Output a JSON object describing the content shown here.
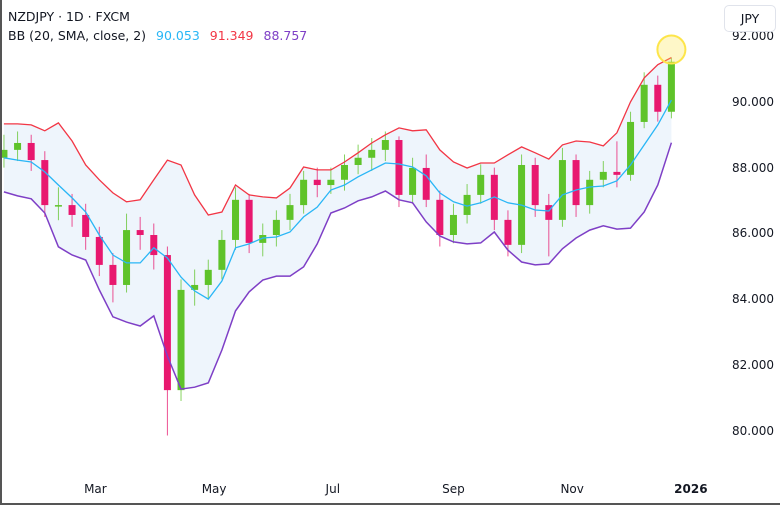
{
  "legend": {
    "symbol_line": "NZDJPY · 1D · FXCM",
    "indicator_label": "BB (20, SMA, close, 2)",
    "basis_value": "90.053",
    "upper_value": "91.349",
    "lower_value": "88.757"
  },
  "currency_button": "JPY",
  "colors": {
    "up": "#5fc32a",
    "down": "#e8186f",
    "basis": "#29b6f6",
    "upper": "#f23645",
    "lower": "#7e3fc6",
    "band_fill": "#eef5fc",
    "highlight": "#fde54a"
  },
  "chart_data": {
    "type": "candlestick",
    "title": "NZDJPY · 1D · FXCM",
    "indicator": "BB (20, SMA, close, 2)",
    "xlim": [
      "2025-01-12",
      "2026-01-17"
    ],
    "ylim": [
      78.8,
      93.1
    ],
    "grid": false,
    "y_ticks": [
      "80.000",
      "82.000",
      "84.000",
      "86.000",
      "88.000",
      "90.000",
      "92.000"
    ],
    "x_ticks": [
      {
        "date": "2025-03-01",
        "label": "Mar"
      },
      {
        "date": "2025-05-01",
        "label": "May"
      },
      {
        "date": "2025-07-01",
        "label": "Jul"
      },
      {
        "date": "2025-09-01",
        "label": "Sep"
      },
      {
        "date": "2025-11-01",
        "label": "Nov"
      },
      {
        "date": "2026-01-01",
        "label": "2026",
        "bold": true
      }
    ],
    "candles_columns": [
      "date",
      "open",
      "high",
      "low",
      "close"
    ],
    "candles": [
      [
        "2025-01-13",
        88.3,
        89.0,
        88.0,
        88.54
      ],
      [
        "2025-01-20",
        88.54,
        89.1,
        88.2,
        88.75
      ],
      [
        "2025-01-27",
        88.75,
        89.0,
        87.9,
        88.23
      ],
      [
        "2025-02-03",
        88.23,
        88.5,
        86.5,
        86.86
      ],
      [
        "2025-02-10",
        86.86,
        87.4,
        86.4,
        86.86
      ],
      [
        "2025-02-17",
        86.86,
        87.2,
        86.2,
        86.56
      ],
      [
        "2025-02-24",
        86.56,
        86.9,
        85.5,
        85.89
      ],
      [
        "2025-03-03",
        85.89,
        86.2,
        84.7,
        85.04
      ],
      [
        "2025-03-10",
        85.04,
        85.4,
        83.9,
        84.43
      ],
      [
        "2025-03-17",
        84.43,
        86.6,
        84.2,
        86.1
      ],
      [
        "2025-03-24",
        86.1,
        86.5,
        85.5,
        85.95
      ],
      [
        "2025-03-31",
        85.95,
        86.3,
        84.9,
        85.34
      ],
      [
        "2025-04-07",
        85.34,
        85.6,
        79.85,
        81.23
      ],
      [
        "2025-04-14",
        81.23,
        84.6,
        80.9,
        84.28
      ],
      [
        "2025-04-21",
        84.28,
        84.9,
        83.8,
        84.43
      ],
      [
        "2025-04-28",
        84.43,
        85.2,
        84.0,
        84.89
      ],
      [
        "2025-05-05",
        84.89,
        86.1,
        84.6,
        85.8
      ],
      [
        "2025-05-12",
        85.8,
        87.4,
        85.5,
        87.02
      ],
      [
        "2025-05-19",
        87.02,
        87.2,
        85.4,
        85.71
      ],
      [
        "2025-05-26",
        85.71,
        86.3,
        85.3,
        85.95
      ],
      [
        "2025-06-02",
        85.95,
        86.7,
        85.6,
        86.41
      ],
      [
        "2025-06-09",
        86.41,
        87.2,
        86.1,
        86.86
      ],
      [
        "2025-06-16",
        86.86,
        87.9,
        86.6,
        87.63
      ],
      [
        "2025-06-23",
        87.63,
        88.0,
        87.1,
        87.47
      ],
      [
        "2025-06-30",
        87.47,
        88.0,
        87.2,
        87.63
      ],
      [
        "2025-07-07",
        87.63,
        88.4,
        87.3,
        88.08
      ],
      [
        "2025-07-14",
        88.08,
        88.7,
        87.8,
        88.3
      ],
      [
        "2025-07-21",
        88.3,
        88.9,
        87.9,
        88.54
      ],
      [
        "2025-07-28",
        88.54,
        89.1,
        88.2,
        88.84
      ],
      [
        "2025-08-04",
        88.84,
        88.95,
        86.8,
        87.17
      ],
      [
        "2025-08-11",
        87.17,
        88.3,
        86.9,
        87.99
      ],
      [
        "2025-08-18",
        87.99,
        88.4,
        86.8,
        87.02
      ],
      [
        "2025-08-25",
        87.02,
        87.3,
        85.6,
        85.95
      ],
      [
        "2025-09-01",
        85.95,
        86.9,
        85.7,
        86.56
      ],
      [
        "2025-09-08",
        86.56,
        87.5,
        86.3,
        87.17
      ],
      [
        "2025-09-15",
        87.17,
        88.1,
        86.9,
        87.78
      ],
      [
        "2025-09-22",
        87.78,
        88.0,
        86.1,
        86.41
      ],
      [
        "2025-09-29",
        86.41,
        86.7,
        85.3,
        85.65
      ],
      [
        "2025-10-06",
        85.65,
        88.4,
        85.4,
        88.08
      ],
      [
        "2025-10-13",
        88.08,
        88.3,
        86.5,
        86.86
      ],
      [
        "2025-10-20",
        86.86,
        87.2,
        85.3,
        86.41
      ],
      [
        "2025-10-27",
        86.41,
        88.6,
        86.2,
        88.23
      ],
      [
        "2025-11-03",
        88.23,
        88.4,
        86.5,
        86.86
      ],
      [
        "2025-11-10",
        86.86,
        87.9,
        86.6,
        87.63
      ],
      [
        "2025-11-17",
        87.63,
        88.2,
        87.4,
        87.87
      ],
      [
        "2025-11-24",
        87.87,
        88.8,
        87.4,
        87.78
      ],
      [
        "2025-12-01",
        87.78,
        89.7,
        87.6,
        89.39
      ],
      [
        "2025-12-08",
        89.39,
        90.9,
        89.2,
        90.52
      ],
      [
        "2025-12-15",
        90.52,
        90.8,
        89.4,
        89.7
      ],
      [
        "2025-12-22",
        89.7,
        91.35,
        89.5,
        91.22
      ]
    ],
    "bands_columns": [
      "upper",
      "basis",
      "lower"
    ],
    "bands": [
      [
        89.33,
        88.3,
        87.26
      ],
      [
        89.33,
        88.23,
        87.14
      ],
      [
        89.3,
        88.17,
        87.05
      ],
      [
        89.12,
        87.87,
        86.62
      ],
      [
        89.36,
        87.47,
        85.59
      ],
      [
        88.81,
        87.08,
        85.34
      ],
      [
        88.08,
        86.65,
        85.19
      ],
      [
        87.63,
        85.95,
        84.28
      ],
      [
        87.23,
        85.34,
        83.46
      ],
      [
        86.96,
        85.1,
        83.3
      ],
      [
        87.02,
        85.1,
        83.18
      ],
      [
        87.63,
        85.56,
        83.49
      ],
      [
        88.23,
        85.25,
        82.27
      ],
      [
        88.08,
        84.67,
        81.26
      ],
      [
        87.17,
        84.25,
        81.32
      ],
      [
        86.56,
        84.0,
        81.45
      ],
      [
        86.65,
        84.55,
        82.45
      ],
      [
        87.47,
        85.56,
        83.64
      ],
      [
        87.17,
        85.68,
        84.22
      ],
      [
        87.11,
        85.86,
        84.58
      ],
      [
        87.08,
        85.89,
        84.7
      ],
      [
        87.38,
        86.04,
        84.7
      ],
      [
        88.02,
        86.5,
        84.98
      ],
      [
        87.93,
        86.8,
        85.68
      ],
      [
        87.93,
        87.32,
        86.62
      ],
      [
        88.17,
        87.47,
        86.77
      ],
      [
        88.45,
        87.72,
        86.99
      ],
      [
        88.75,
        87.93,
        87.11
      ],
      [
        89.0,
        88.14,
        87.29
      ],
      [
        89.21,
        88.11,
        87.02
      ],
      [
        89.12,
        88.02,
        86.93
      ],
      [
        89.15,
        87.75,
        86.35
      ],
      [
        88.54,
        87.23,
        85.92
      ],
      [
        88.17,
        86.96,
        85.74
      ],
      [
        87.99,
        86.83,
        85.68
      ],
      [
        88.14,
        86.93,
        85.71
      ],
      [
        88.14,
        87.11,
        86.04
      ],
      [
        88.39,
        86.93,
        85.49
      ],
      [
        88.63,
        86.86,
        85.13
      ],
      [
        88.45,
        86.71,
        85.04
      ],
      [
        88.26,
        86.68,
        85.07
      ],
      [
        88.69,
        87.17,
        85.53
      ],
      [
        88.81,
        87.32,
        85.86
      ],
      [
        88.78,
        87.41,
        86.1
      ],
      [
        88.66,
        87.44,
        86.23
      ],
      [
        89.06,
        87.6,
        86.13
      ],
      [
        90.0,
        88.08,
        86.16
      ],
      [
        90.73,
        88.69,
        86.65
      ],
      [
        91.13,
        89.3,
        87.47
      ],
      [
        91.349,
        90.053,
        88.757
      ]
    ],
    "highlight_last_bar": true
  }
}
